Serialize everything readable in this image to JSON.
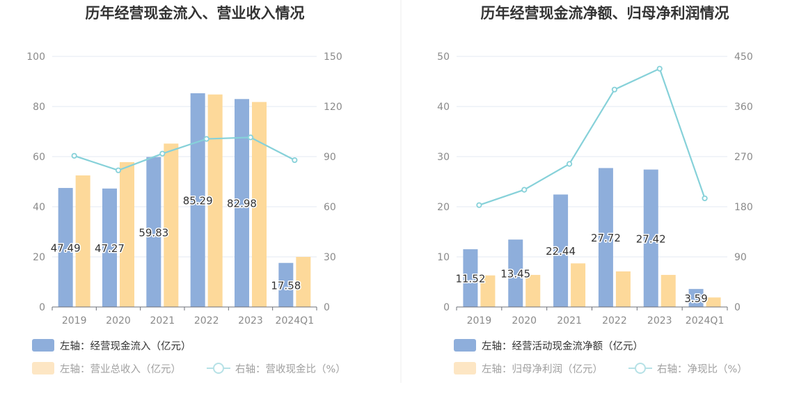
{
  "colors": {
    "bar_primary": "#8eaedb",
    "bar_secondary": "#fdd99a",
    "line": "#86d1d9",
    "grid": "#e3e8f3",
    "axis": "#6e7079",
    "legend_text_active": "#333333",
    "legend_text_inactive": "#a0a0a0",
    "legend_inactive_swatch": "#fde6c4",
    "legend_inactive_line": "#b6e1e6"
  },
  "chart_data": [
    {
      "type": "bar",
      "title": "历年经营现金流入、营业收入情况",
      "categories": [
        "2019",
        "2020",
        "2021",
        "2022",
        "2023",
        "2024Q1"
      ],
      "left_axis": {
        "ylim": [
          0,
          100
        ],
        "ticks": [
          "0",
          "20",
          "40",
          "60",
          "80",
          "100"
        ]
      },
      "right_axis": {
        "ylim": [
          0,
          150
        ],
        "ticks": [
          "0",
          "30",
          "60",
          "90",
          "120",
          "150"
        ]
      },
      "series": [
        {
          "name": "左轴：经营现金流入（亿元）",
          "kind": "bar",
          "axis": "left",
          "values": [
            47.49,
            47.27,
            59.83,
            85.29,
            82.98,
            17.58
          ],
          "labels": [
            "47.49",
            "47.27",
            "59.83",
            "85.29",
            "82.98",
            "17.58"
          ],
          "active": true
        },
        {
          "name": "左轴：营业总收入（亿元）",
          "kind": "bar",
          "axis": "left",
          "values": [
            52.5,
            57.8,
            65.2,
            84.8,
            81.8,
            20.0
          ],
          "active": false
        },
        {
          "name": "右轴：营收现金比（%）",
          "kind": "line",
          "axis": "right",
          "values": [
            90.5,
            81.8,
            91.8,
            100.6,
            101.5,
            87.9
          ],
          "active": false
        }
      ],
      "legend": [
        "左轴：经营现金流入（亿元）",
        "左轴：营业总收入（亿元）",
        "右轴：营收现金比（%）"
      ]
    },
    {
      "type": "bar",
      "title": "历年经营现金流净额、归母净利润情况",
      "categories": [
        "2019",
        "2020",
        "2021",
        "2022",
        "2023",
        "2024Q1"
      ],
      "left_axis": {
        "ylim": [
          0,
          50
        ],
        "ticks": [
          "0",
          "10",
          "20",
          "30",
          "40",
          "50"
        ]
      },
      "right_axis": {
        "ylim": [
          0,
          450
        ],
        "ticks": [
          "0",
          "90",
          "180",
          "270",
          "360",
          "450"
        ]
      },
      "series": [
        {
          "name": "左轴：经营活动现金流净额（亿元）",
          "kind": "bar",
          "axis": "left",
          "values": [
            11.52,
            13.45,
            22.44,
            27.72,
            27.42,
            3.59
          ],
          "labels": [
            "11.52",
            "13.45",
            "22.44",
            "27.72",
            "27.42",
            "3.59"
          ],
          "active": true
        },
        {
          "name": "左轴：归母净利润（亿元）",
          "kind": "bar",
          "axis": "left",
          "values": [
            6.3,
            6.4,
            8.7,
            7.1,
            6.4,
            1.9
          ],
          "active": false
        },
        {
          "name": "右轴：净现比（%）",
          "kind": "line",
          "axis": "right",
          "values": [
            182.9,
            210.5,
            256.9,
            390.4,
            427.9,
            195.1
          ],
          "active": false
        }
      ],
      "legend": [
        "左轴：经营活动现金流净额（亿元）",
        "左轴：归母净利润（亿元）",
        "右轴：净现比（%）"
      ]
    }
  ]
}
